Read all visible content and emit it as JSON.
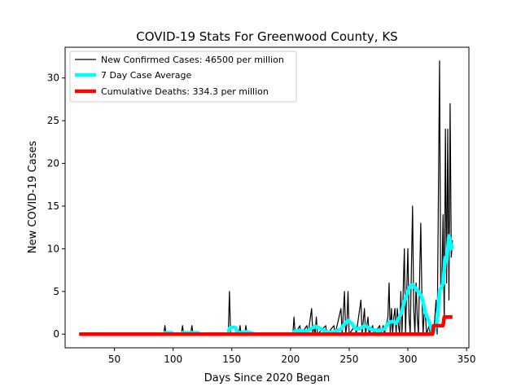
{
  "chart_data": {
    "type": "line",
    "title": "COVID-19 Stats For Greenwood County, KS",
    "xlabel": "Days Since 2020 Began",
    "ylabel": "New COVID-19 Cases",
    "xlim": [
      8,
      352
    ],
    "ylim": [
      -1.6,
      33.6
    ],
    "xticks": [
      50,
      100,
      150,
      200,
      250,
      300,
      350
    ],
    "yticks": [
      0,
      5,
      10,
      15,
      20,
      25,
      30
    ],
    "grid": false,
    "legend_position": "top-left",
    "series": [
      {
        "name": "New Confirmed Cases: 46500 per million",
        "color": "#000000",
        "points": [
          [
            20,
            0
          ],
          [
            92,
            0
          ],
          [
            93,
            1
          ],
          [
            94,
            0
          ],
          [
            107,
            0
          ],
          [
            108,
            1
          ],
          [
            109,
            0
          ],
          [
            115,
            0
          ],
          [
            116,
            1
          ],
          [
            117,
            0
          ],
          [
            147,
            0
          ],
          [
            148,
            5
          ],
          [
            149,
            0
          ],
          [
            156,
            0
          ],
          [
            157,
            1
          ],
          [
            158,
            0
          ],
          [
            161,
            0
          ],
          [
            162,
            1
          ],
          [
            163,
            0
          ],
          [
            202,
            0
          ],
          [
            203,
            2
          ],
          [
            204,
            0
          ],
          [
            208,
            1
          ],
          [
            209,
            0
          ],
          [
            214,
            1
          ],
          [
            215,
            0
          ],
          [
            218,
            3
          ],
          [
            219,
            0
          ],
          [
            220,
            1
          ],
          [
            221,
            0
          ],
          [
            222,
            2
          ],
          [
            223,
            0
          ],
          [
            230,
            1
          ],
          [
            231,
            0
          ],
          [
            237,
            1
          ],
          [
            238,
            0
          ],
          [
            243,
            3
          ],
          [
            244,
            0
          ],
          [
            246,
            5
          ],
          [
            247,
            0
          ],
          [
            248,
            1
          ],
          [
            249,
            5
          ],
          [
            250,
            0
          ],
          [
            255,
            1
          ],
          [
            256,
            0
          ],
          [
            260,
            4
          ],
          [
            261,
            0
          ],
          [
            263,
            3
          ],
          [
            264,
            0
          ],
          [
            266,
            2
          ],
          [
            267,
            0
          ],
          [
            270,
            1
          ],
          [
            271,
            0
          ],
          [
            276,
            1
          ],
          [
            277,
            0
          ],
          [
            279,
            1
          ],
          [
            280,
            0
          ],
          [
            283,
            2
          ],
          [
            284,
            6
          ],
          [
            285,
            0
          ],
          [
            286,
            3
          ],
          [
            287,
            0
          ],
          [
            288,
            2
          ],
          [
            289,
            3
          ],
          [
            290,
            0
          ],
          [
            291,
            3
          ],
          [
            292,
            1
          ],
          [
            293,
            0
          ],
          [
            294,
            5
          ],
          [
            295,
            0
          ],
          [
            297,
            10
          ],
          [
            298,
            0
          ],
          [
            300,
            10
          ],
          [
            301,
            2
          ],
          [
            302,
            0
          ],
          [
            304,
            15
          ],
          [
            305,
            3
          ],
          [
            306,
            0
          ],
          [
            307,
            6
          ],
          [
            308,
            2
          ],
          [
            309,
            0
          ],
          [
            311,
            13
          ],
          [
            312,
            4
          ],
          [
            313,
            0
          ],
          [
            314,
            3
          ],
          [
            315,
            2
          ],
          [
            316,
            0
          ],
          [
            318,
            1
          ],
          [
            319,
            0
          ],
          [
            322,
            0
          ],
          [
            324,
            4
          ],
          [
            325,
            0
          ],
          [
            327,
            32
          ],
          [
            328,
            5
          ],
          [
            329,
            6
          ],
          [
            330,
            14
          ],
          [
            331,
            1
          ],
          [
            332,
            24
          ],
          [
            333,
            6
          ],
          [
            334,
            24
          ],
          [
            335,
            4
          ],
          [
            336,
            27
          ],
          [
            337,
            9
          ],
          [
            338,
            11
          ]
        ]
      },
      {
        "name": "7 Day Case Average",
        "color": "#00ffff",
        "points": [
          [
            20,
            0
          ],
          [
            92,
            0
          ],
          [
            93,
            0.15
          ],
          [
            99,
            0.15
          ],
          [
            100,
            0
          ],
          [
            107,
            0
          ],
          [
            108,
            0.15
          ],
          [
            114,
            0.15
          ],
          [
            115,
            0.15
          ],
          [
            121,
            0.15
          ],
          [
            123,
            0
          ],
          [
            147,
            0
          ],
          [
            148,
            0.7
          ],
          [
            150,
            0.8
          ],
          [
            153,
            0.8
          ],
          [
            155,
            0.2
          ],
          [
            158,
            0.15
          ],
          [
            161,
            0.3
          ],
          [
            165,
            0.2
          ],
          [
            170,
            0
          ],
          [
            202,
            0
          ],
          [
            203,
            0.3
          ],
          [
            208,
            0.4
          ],
          [
            214,
            0.3
          ],
          [
            218,
            0.7
          ],
          [
            222,
            0.9
          ],
          [
            226,
            0.6
          ],
          [
            230,
            0.3
          ],
          [
            236,
            0.2
          ],
          [
            243,
            0.6
          ],
          [
            246,
            1.2
          ],
          [
            249,
            1.6
          ],
          [
            252,
            1.3
          ],
          [
            256,
            0.6
          ],
          [
            260,
            0.7
          ],
          [
            263,
            1.0
          ],
          [
            266,
            0.8
          ],
          [
            270,
            0.5
          ],
          [
            276,
            0.4
          ],
          [
            280,
            0.6
          ],
          [
            284,
            1.4
          ],
          [
            287,
            1.5
          ],
          [
            290,
            1.3
          ],
          [
            294,
            2.3
          ],
          [
            297,
            3.8
          ],
          [
            300,
            5.0
          ],
          [
            302,
            5.6
          ],
          [
            304,
            5.8
          ],
          [
            307,
            5.3
          ],
          [
            311,
            4.6
          ],
          [
            313,
            3.8
          ],
          [
            315,
            2.5
          ],
          [
            318,
            1.5
          ],
          [
            320,
            0.6
          ],
          [
            322,
            0.2
          ],
          [
            325,
            1.5
          ],
          [
            327,
            5.0
          ],
          [
            329,
            5.6
          ],
          [
            330,
            6.0
          ],
          [
            331,
            7.5
          ],
          [
            332,
            9.0
          ],
          [
            333,
            8.5
          ],
          [
            334,
            10.0
          ],
          [
            335,
            11.5
          ],
          [
            336,
            11.0
          ],
          [
            337,
            10.0
          ],
          [
            338,
            10.5
          ]
        ]
      },
      {
        "name": "Cumulative Deaths: 334.3 per million",
        "color": "#ff0000",
        "points": [
          [
            20,
            0
          ],
          [
            321,
            0
          ],
          [
            322,
            1
          ],
          [
            330,
            1
          ],
          [
            331,
            2
          ],
          [
            338,
            2
          ]
        ]
      }
    ]
  }
}
